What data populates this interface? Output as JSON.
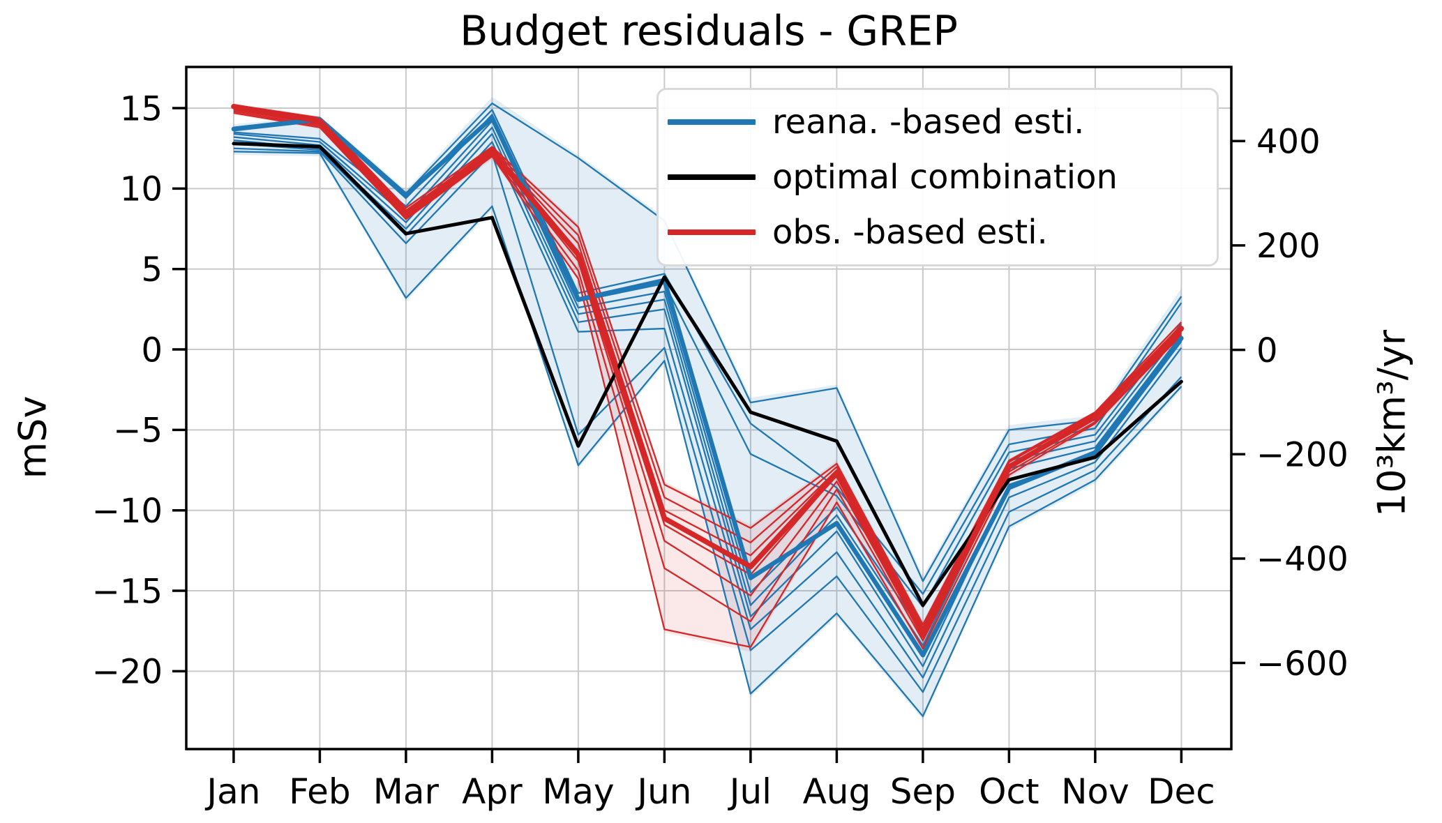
{
  "title": "Budget residuals - GREP",
  "axes": {
    "ylabel_left": "mSv",
    "ylabel_right": "10³km³/yr",
    "x_tick_labels": [
      "Jan",
      "Feb",
      "Mar",
      "Apr",
      "May",
      "Jun",
      "Jul",
      "Aug",
      "Sep",
      "Oct",
      "Nov",
      "Dec"
    ],
    "left_ticks": [
      {
        "value": 15,
        "label": "15"
      },
      {
        "value": 10,
        "label": "10"
      },
      {
        "value": 5,
        "label": "5"
      },
      {
        "value": 0,
        "label": "0"
      },
      {
        "value": -5,
        "label": "−5"
      },
      {
        "value": -10,
        "label": "−10"
      },
      {
        "value": -15,
        "label": "−15"
      },
      {
        "value": -20,
        "label": "−20"
      }
    ],
    "right_ticks": [
      {
        "value": 400,
        "label": "400"
      },
      {
        "value": 200,
        "label": "200"
      },
      {
        "value": 0,
        "label": "0"
      },
      {
        "value": -200,
        "label": "−200"
      },
      {
        "value": -400,
        "label": "−400"
      },
      {
        "value": -600,
        "label": "−600"
      }
    ]
  },
  "legend": [
    {
      "label": "reana. -based esti.",
      "color": "#1f77b4"
    },
    {
      "label": "optimal combination",
      "color": "#000000"
    },
    {
      "label": "obs. -based esti.",
      "color": "#d62728"
    }
  ],
  "colors": {
    "reana": "#1f77b4",
    "optimal": "#000000",
    "obs": "#d62728",
    "grid": "#c9c9c9",
    "reana_fill": "#1f77b4",
    "obs_fill": "#d62728"
  },
  "chart_data": {
    "type": "line",
    "title": "Budget residuals - GREP",
    "xlabel": "",
    "ylabel_left": "mSv",
    "ylabel_right": "10³km³/yr",
    "x": [
      "Jan",
      "Feb",
      "Mar",
      "Apr",
      "May",
      "Jun",
      "Jul",
      "Aug",
      "Sep",
      "Oct",
      "Nov",
      "Dec"
    ],
    "xlim": [
      -0.55,
      11.58
    ],
    "ylim_left": [
      -24.84,
      17.56
    ],
    "ylim_right": [
      -765,
      542
    ],
    "grid": true,
    "legend_position": "upper right",
    "series": [
      {
        "name": "reana. -based esti.",
        "role": "reana_mean",
        "color": "#1f77b4",
        "width": 6.5,
        "values": [
          13.7,
          14.3,
          9.6,
          14.4,
          3.1,
          4.3,
          -14.2,
          -10.8,
          -19.0,
          -8.6,
          -6.4,
          0.7
        ]
      },
      {
        "name": "optimal combination",
        "role": "optimal",
        "color": "#000000",
        "width": 5,
        "values": [
          12.8,
          12.6,
          7.2,
          8.2,
          -6.0,
          4.5,
          -3.9,
          -5.7,
          -15.9,
          -8.1,
          -6.7,
          -2.0
        ]
      },
      {
        "name": "obs. -based esti.",
        "role": "obs_mean",
        "color": "#d62728",
        "width": 7.5,
        "values": [
          15.1,
          14.2,
          8.5,
          12.3,
          5.9,
          -10.5,
          -13.5,
          -7.7,
          -17.7,
          -7.3,
          -4.2,
          1.3
        ]
      }
    ],
    "ensembles": {
      "reana_members": [
        [
          13.8,
          14.4,
          9.7,
          15.3,
          11.9,
          8.0,
          -3.3,
          -2.4,
          -14.4,
          -5.0,
          -4.4,
          3.3
        ],
        [
          13.6,
          14.2,
          9.4,
          14.9,
          3.5,
          4.7,
          -4.6,
          -8.6,
          -15.2,
          -5.9,
          -4.9,
          2.9
        ],
        [
          13.5,
          13.1,
          8.9,
          14.6,
          3.0,
          4.1,
          -6.5,
          -9.1,
          -16.0,
          -6.4,
          -5.3,
          1.6
        ],
        [
          13.4,
          12.9,
          8.3,
          14.2,
          2.6,
          3.6,
          -15.1,
          -9.8,
          -17.6,
          -6.9,
          -5.7,
          1.2
        ],
        [
          13.2,
          12.7,
          7.9,
          13.8,
          2.2,
          3.1,
          -15.9,
          -10.3,
          -18.4,
          -7.4,
          -6.1,
          0.9
        ],
        [
          13.0,
          12.5,
          7.5,
          13.4,
          1.7,
          2.5,
          -16.6,
          -11.3,
          -19.7,
          -8.4,
          -6.6,
          0.5
        ],
        [
          12.8,
          12.4,
          7.1,
          12.9,
          1.1,
          1.3,
          -17.4,
          -12.6,
          -20.4,
          -9.2,
          -7.0,
          0.1
        ],
        [
          12.5,
          12.3,
          6.6,
          12.2,
          -5.3,
          0.1,
          -18.7,
          -14.1,
          -21.3,
          -10.1,
          -7.5,
          -1.7
        ],
        [
          12.3,
          12.2,
          3.2,
          8.9,
          -7.2,
          -0.7,
          -21.4,
          -16.4,
          -22.8,
          -11.0,
          -8.1,
          -2.3
        ]
      ],
      "obs_members": [
        [
          15.2,
          14.4,
          8.8,
          12.6,
          7.6,
          -8.4,
          -11.1,
          -7.1,
          -17.1,
          -6.9,
          -3.9,
          1.7
        ],
        [
          15.1,
          14.3,
          8.6,
          12.5,
          7.1,
          -9.2,
          -12.0,
          -7.3,
          -17.3,
          -7.0,
          -4.0,
          1.5
        ],
        [
          15.0,
          14.2,
          8.5,
          12.4,
          6.6,
          -10.0,
          -12.8,
          -7.5,
          -17.5,
          -7.2,
          -4.1,
          1.4
        ],
        [
          15.0,
          14.1,
          8.4,
          12.3,
          6.1,
          -10.9,
          -14.0,
          -7.8,
          -17.7,
          -7.3,
          -4.2,
          1.3
        ],
        [
          14.9,
          14.0,
          8.3,
          12.2,
          5.5,
          -11.9,
          -15.3,
          -8.2,
          -17.9,
          -7.4,
          -4.3,
          1.1
        ],
        [
          14.8,
          13.9,
          8.2,
          12.1,
          4.9,
          -13.6,
          -16.9,
          -8.7,
          -18.1,
          -7.6,
          -4.5,
          1.0
        ],
        [
          14.7,
          13.8,
          8.1,
          12.0,
          4.4,
          -17.4,
          -18.5,
          -9.5,
          -18.6,
          -7.8,
          -4.6,
          0.9
        ]
      ]
    },
    "envelopes": {
      "reana": {
        "upper": [
          14.0,
          14.5,
          9.9,
          15.7,
          12.1,
          8.2,
          -3.0,
          -2.2,
          -14.1,
          -4.7,
          -4.1,
          3.8
        ],
        "lower": [
          12.1,
          12.0,
          3.0,
          8.7,
          -7.4,
          -0.9,
          -21.6,
          -16.6,
          -23.0,
          -11.2,
          -8.3,
          -2.5
        ],
        "opacity": 0.13
      },
      "obs": {
        "upper": [
          15.3,
          14.5,
          8.9,
          12.7,
          7.8,
          -8.2,
          -10.9,
          -6.9,
          -16.9,
          -6.8,
          -3.8,
          1.8
        ],
        "lower": [
          14.6,
          13.7,
          8.0,
          11.8,
          4.3,
          -17.6,
          -18.8,
          -9.7,
          -18.8,
          -8.0,
          -4.8,
          0.7
        ],
        "opacity": 0.1
      }
    }
  }
}
